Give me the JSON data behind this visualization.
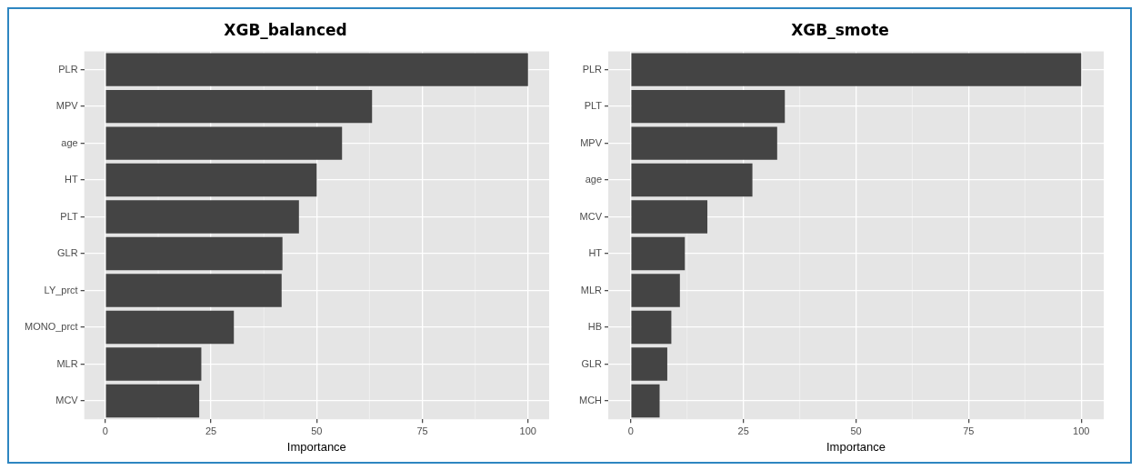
{
  "chart_data": [
    {
      "type": "bar",
      "title": "XGB_balanced",
      "orientation": "horizontal",
      "xlabel": "Importance",
      "categories": [
        "PLR",
        "MPV",
        "age",
        "HT",
        "PLT",
        "GLR",
        "LY_prct",
        "MONO_prct",
        "MLR",
        "MCV"
      ],
      "values": [
        100,
        63.1,
        56.0,
        50.0,
        45.8,
        41.9,
        41.7,
        30.4,
        22.7,
        22.2
      ],
      "color": "#444444",
      "xlim": [
        -5,
        105
      ],
      "xticks": [
        0,
        25,
        50,
        75,
        100
      ],
      "grid": true,
      "legend": false
    },
    {
      "type": "bar",
      "title": "XGB_smote",
      "orientation": "horizontal",
      "xlabel": "Importance",
      "categories": [
        "PLR",
        "PLT",
        "MPV",
        "age",
        "MCV",
        "HT",
        "MLR",
        "HB",
        "GLR",
        "MCH"
      ],
      "values": [
        100,
        34.2,
        32.5,
        27.0,
        17.0,
        12.0,
        10.9,
        9.0,
        8.1,
        6.4
      ],
      "color": "#444444",
      "xlim": [
        -5,
        105
      ],
      "xticks": [
        0,
        25,
        50,
        75,
        100
      ],
      "grid": true,
      "legend": false
    }
  ]
}
